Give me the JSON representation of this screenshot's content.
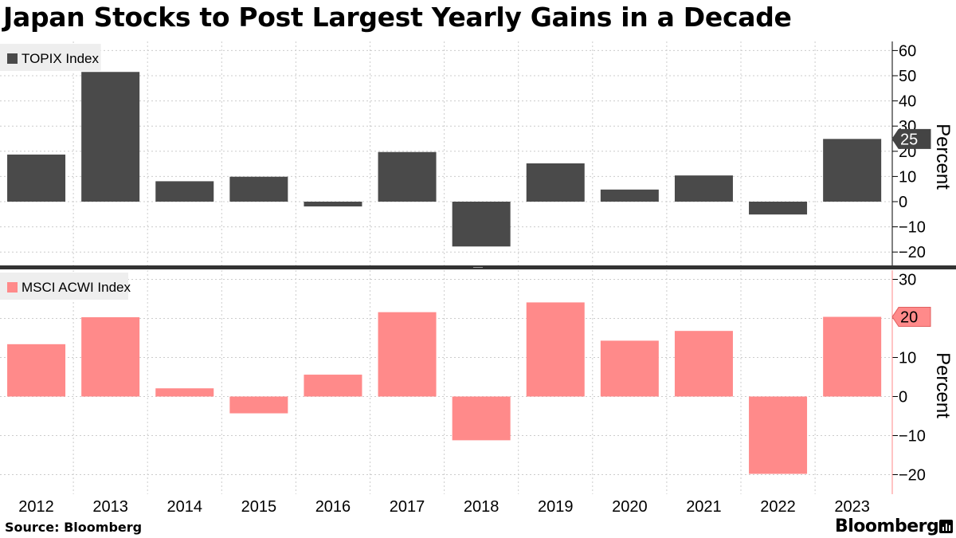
{
  "title": "Japan Stocks to Post Largest Yearly Gains in a Decade",
  "source": "Source: Bloomberg",
  "brand": "Bloomberg",
  "chart_data": [
    {
      "type": "bar",
      "legend": "TOPIX Index",
      "color": "#4a4a4a",
      "categories": [
        "2012",
        "2013",
        "2014",
        "2015",
        "2016",
        "2017",
        "2018",
        "2019",
        "2020",
        "2021",
        "2022",
        "2023"
      ],
      "values": [
        18.7,
        51.5,
        8.1,
        9.9,
        -1.9,
        19.7,
        -17.8,
        15.2,
        4.8,
        10.4,
        -5.1,
        24.9
      ],
      "ylabel": "Percent",
      "ylim": [
        -24,
        63
      ],
      "yticks": [
        -20,
        -10,
        0,
        10,
        20,
        30,
        40,
        50,
        60
      ],
      "last_value_label": "25",
      "grid": true
    },
    {
      "type": "bar",
      "legend": "MSCI ACWI Index",
      "color": "#ff8a8a",
      "categories": [
        "2012",
        "2013",
        "2014",
        "2015",
        "2016",
        "2017",
        "2018",
        "2019",
        "2020",
        "2021",
        "2022",
        "2023"
      ],
      "values": [
        13.4,
        20.3,
        2.1,
        -4.3,
        5.6,
        21.6,
        -11.2,
        24.1,
        14.3,
        16.8,
        -19.8,
        20.4
      ],
      "ylabel": "Percent",
      "ylim": [
        -25,
        32
      ],
      "yticks": [
        -20,
        -10,
        0,
        10,
        20,
        30
      ],
      "last_value_label": "20",
      "grid": true
    }
  ]
}
